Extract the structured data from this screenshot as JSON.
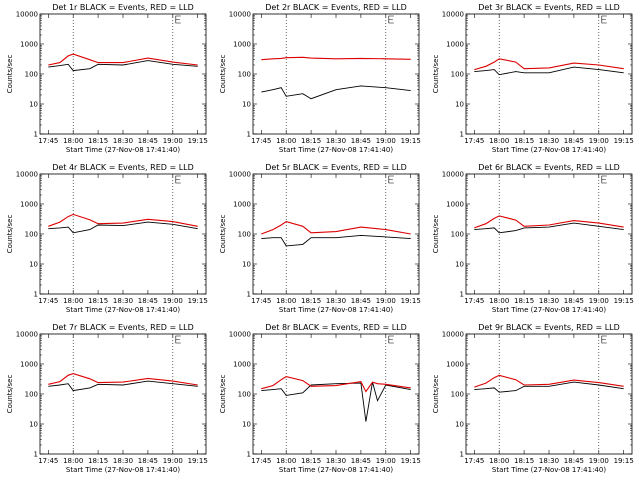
{
  "common": {
    "ylabel": "Counts/sec",
    "xlabel": "Start Time (27-Nov-08 17:41:40)",
    "xticks": [
      "17:45",
      "18:00",
      "18:15",
      "18:30",
      "18:45",
      "19:00",
      "19:15"
    ],
    "yticks": [
      "1",
      "10",
      "100",
      "1000",
      "10000"
    ],
    "colors": {
      "events": "#000000",
      "lld": "#dd0000"
    }
  },
  "chart_data": [
    {
      "type": "line",
      "title": "Det 1r BLACK = Events, RED = LLD",
      "ylog": true,
      "ylim": [
        1,
        10000
      ],
      "x": [
        "17:45",
        "17:52",
        "17:57",
        "18:00",
        "18:10",
        "18:15",
        "18:30",
        "18:45",
        "19:00",
        "19:15"
      ],
      "series": [
        {
          "name": "Events",
          "values": [
            170,
            190,
            210,
            130,
            150,
            210,
            200,
            280,
            210,
            180
          ]
        },
        {
          "name": "LLD",
          "values": [
            200,
            240,
            400,
            460,
            300,
            240,
            240,
            340,
            250,
            200
          ]
        }
      ]
    },
    {
      "type": "line",
      "title": "Det 2r BLACK = Events, RED = LLD",
      "ylog": true,
      "ylim": [
        1,
        10000
      ],
      "x": [
        "17:45",
        "17:52",
        "17:57",
        "18:00",
        "18:10",
        "18:15",
        "18:30",
        "18:45",
        "19:00",
        "19:15"
      ],
      "series": [
        {
          "name": "Events",
          "values": [
            25,
            30,
            35,
            18,
            22,
            15,
            30,
            40,
            35,
            28
          ]
        },
        {
          "name": "LLD",
          "values": [
            300,
            320,
            330,
            350,
            360,
            340,
            320,
            330,
            320,
            310
          ]
        }
      ]
    },
    {
      "type": "line",
      "title": "Det 3r BLACK = Events, RED = LLD",
      "ylog": true,
      "ylim": [
        1,
        10000
      ],
      "x": [
        "17:45",
        "17:52",
        "17:57",
        "18:00",
        "18:10",
        "18:15",
        "18:30",
        "18:45",
        "19:00",
        "19:15"
      ],
      "series": [
        {
          "name": "Events",
          "values": [
            120,
            130,
            140,
            95,
            120,
            110,
            110,
            170,
            140,
            110
          ]
        },
        {
          "name": "LLD",
          "values": [
            140,
            180,
            250,
            320,
            250,
            150,
            160,
            230,
            200,
            150
          ]
        }
      ]
    },
    {
      "type": "line",
      "title": "Det 4r BLACK = Events, RED = LLD",
      "ylog": true,
      "ylim": [
        1,
        10000
      ],
      "x": [
        "17:45",
        "17:52",
        "17:57",
        "18:00",
        "18:10",
        "18:15",
        "18:30",
        "18:45",
        "19:00",
        "19:15"
      ],
      "series": [
        {
          "name": "Events",
          "values": [
            150,
            160,
            170,
            110,
            140,
            200,
            190,
            250,
            210,
            150
          ]
        },
        {
          "name": "LLD",
          "values": [
            180,
            250,
            380,
            450,
            300,
            220,
            230,
            310,
            260,
            180
          ]
        }
      ]
    },
    {
      "type": "line",
      "title": "Det 5r BLACK = Events, RED = LLD",
      "ylog": true,
      "ylim": [
        1,
        10000
      ],
      "x": [
        "17:45",
        "17:52",
        "17:57",
        "18:00",
        "18:10",
        "18:15",
        "18:30",
        "18:45",
        "19:00",
        "19:15"
      ],
      "series": [
        {
          "name": "Events",
          "values": [
            70,
            75,
            75,
            40,
            45,
            75,
            75,
            90,
            80,
            70
          ]
        },
        {
          "name": "LLD",
          "values": [
            100,
            140,
            200,
            260,
            180,
            110,
            120,
            170,
            140,
            100
          ]
        }
      ]
    },
    {
      "type": "line",
      "title": "Det 6r BLACK = Events, RED = LLD",
      "ylog": true,
      "ylim": [
        1,
        10000
      ],
      "x": [
        "17:45",
        "17:52",
        "17:57",
        "18:00",
        "18:10",
        "18:15",
        "18:30",
        "18:45",
        "19:00",
        "19:15"
      ],
      "series": [
        {
          "name": "Events",
          "values": [
            140,
            150,
            160,
            110,
            130,
            160,
            170,
            230,
            180,
            140
          ]
        },
        {
          "name": "LLD",
          "values": [
            160,
            220,
            330,
            400,
            290,
            180,
            200,
            280,
            230,
            170
          ]
        }
      ]
    },
    {
      "type": "line",
      "title": "Det 7r BLACK = Events, RED = LLD",
      "ylog": true,
      "ylim": [
        1,
        10000
      ],
      "x": [
        "17:45",
        "17:52",
        "17:57",
        "18:00",
        "18:10",
        "18:15",
        "18:30",
        "18:45",
        "19:00",
        "19:15"
      ],
      "series": [
        {
          "name": "Events",
          "values": [
            180,
            200,
            220,
            130,
            160,
            210,
            200,
            270,
            220,
            180
          ]
        },
        {
          "name": "LLD",
          "values": [
            210,
            260,
            420,
            480,
            320,
            240,
            250,
            330,
            270,
            200
          ]
        }
      ]
    },
    {
      "type": "line",
      "title": "Det 8r BLACK = Events, RED = LLD",
      "ylog": true,
      "ylim": [
        1,
        10000
      ],
      "x": [
        "17:45",
        "17:52",
        "17:57",
        "18:00",
        "18:10",
        "18:15",
        "18:30",
        "18:45",
        "18:48",
        "18:52",
        "18:55",
        "19:00",
        "19:15"
      ],
      "series": [
        {
          "name": "Events",
          "values": [
            130,
            140,
            150,
            90,
            110,
            200,
            220,
            230,
            12,
            250,
            60,
            200,
            140
          ]
        },
        {
          "name": "LLD",
          "values": [
            150,
            190,
            300,
            380,
            280,
            180,
            190,
            260,
            120,
            250,
            220,
            210,
            160
          ]
        }
      ]
    },
    {
      "type": "line",
      "title": "Det 9r BLACK = Events, RED = LLD",
      "ylog": true,
      "ylim": [
        1,
        10000
      ],
      "x": [
        "17:45",
        "17:52",
        "17:57",
        "18:00",
        "18:10",
        "18:15",
        "18:30",
        "18:45",
        "19:00",
        "19:15"
      ],
      "series": [
        {
          "name": "Events",
          "values": [
            140,
            150,
            160,
            115,
            130,
            180,
            180,
            250,
            200,
            150
          ]
        },
        {
          "name": "LLD",
          "values": [
            170,
            230,
            350,
            420,
            300,
            200,
            210,
            290,
            240,
            180
          ]
        }
      ]
    }
  ]
}
